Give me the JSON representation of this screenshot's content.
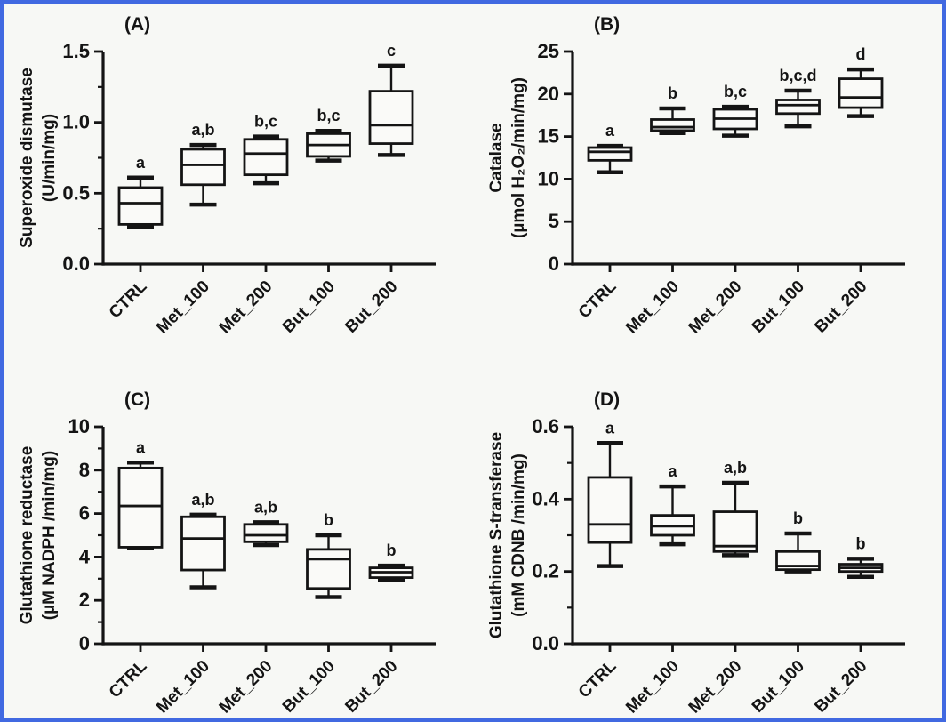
{
  "figure": {
    "background_color": "#f7f8f5",
    "border_color": "#4169e1",
    "ink_color": "#141414",
    "box_fill_color": "#fafaf8"
  },
  "chart_data": [
    {
      "type": "box",
      "panel_letter": "(A)",
      "ylabel_line1": "Superoxide dismutase",
      "ylabel_line2": "(U/min/mg)",
      "ylim": [
        0,
        1.5
      ],
      "yticks": [
        {
          "v": 0,
          "label": "0.0"
        },
        {
          "v": 0.5,
          "label": "0.5"
        },
        {
          "v": 1.0,
          "label": "1.0"
        },
        {
          "v": 1.5,
          "label": "1.5"
        }
      ],
      "minor_tick_step": 0.25,
      "grid": false,
      "categories": [
        "CTRL",
        "Met_100",
        "Met_200",
        "But_100",
        "But_200"
      ],
      "boxes": [
        {
          "category": "CTRL",
          "whisker_low": 0.26,
          "q1": 0.28,
          "median": 0.43,
          "q3": 0.54,
          "whisker_high": 0.61,
          "annotation": "a"
        },
        {
          "category": "Met_100",
          "whisker_low": 0.42,
          "q1": 0.56,
          "median": 0.7,
          "q3": 0.81,
          "whisker_high": 0.84,
          "annotation": "a,b"
        },
        {
          "category": "Met_200",
          "whisker_low": 0.57,
          "q1": 0.63,
          "median": 0.78,
          "q3": 0.88,
          "whisker_high": 0.9,
          "annotation": "b,c"
        },
        {
          "category": "But_100",
          "whisker_low": 0.73,
          "q1": 0.76,
          "median": 0.84,
          "q3": 0.92,
          "whisker_high": 0.94,
          "annotation": "b,c"
        },
        {
          "category": "But_200",
          "whisker_low": 0.77,
          "q1": 0.85,
          "median": 0.98,
          "q3": 1.22,
          "whisker_high": 1.4,
          "annotation": "c"
        }
      ]
    },
    {
      "type": "box",
      "panel_letter": "(B)",
      "ylabel_line1": "Catalase",
      "ylabel_line2": "(µmol H₂O₂/min/mg)",
      "ylim": [
        0,
        25
      ],
      "yticks": [
        {
          "v": 0,
          "label": "0"
        },
        {
          "v": 5,
          "label": "5"
        },
        {
          "v": 10,
          "label": "10"
        },
        {
          "v": 15,
          "label": "15"
        },
        {
          "v": 20,
          "label": "20"
        },
        {
          "v": 25,
          "label": "25"
        }
      ],
      "minor_tick_step": null,
      "grid": false,
      "categories": [
        "CTRL",
        "Met_100",
        "Met_200",
        "But_100",
        "But_200"
      ],
      "boxes": [
        {
          "category": "CTRL",
          "whisker_low": 10.8,
          "q1": 12.2,
          "median": 13.2,
          "q3": 13.7,
          "whisker_high": 13.9,
          "annotation": "a"
        },
        {
          "category": "Met_100",
          "whisker_low": 15.4,
          "q1": 15.7,
          "median": 16.1,
          "q3": 17.0,
          "whisker_high": 18.3,
          "annotation": "b"
        },
        {
          "category": "Met_200",
          "whisker_low": 15.1,
          "q1": 15.9,
          "median": 17.1,
          "q3": 18.2,
          "whisker_high": 18.5,
          "annotation": "b,c"
        },
        {
          "category": "But_100",
          "whisker_low": 16.2,
          "q1": 17.7,
          "median": 18.7,
          "q3": 19.3,
          "whisker_high": 20.4,
          "annotation": "b,c,d"
        },
        {
          "category": "But_200",
          "whisker_low": 17.4,
          "q1": 18.4,
          "median": 19.6,
          "q3": 21.8,
          "whisker_high": 22.9,
          "annotation": "d"
        }
      ]
    },
    {
      "type": "box",
      "panel_letter": "(C)",
      "ylabel_line1": "Glutathione reductase",
      "ylabel_line2": "(µM NADPH /min/mg)",
      "ylim": [
        0,
        10
      ],
      "yticks": [
        {
          "v": 0,
          "label": "0"
        },
        {
          "v": 2,
          "label": "2"
        },
        {
          "v": 4,
          "label": "4"
        },
        {
          "v": 6,
          "label": "6"
        },
        {
          "v": 8,
          "label": "8"
        },
        {
          "v": 10,
          "label": "10"
        }
      ],
      "minor_tick_step": 1,
      "grid": false,
      "categories": [
        "CTRL",
        "Met_100",
        "Met_200",
        "But_100",
        "But_200"
      ],
      "boxes": [
        {
          "category": "CTRL",
          "whisker_low": 4.4,
          "q1": 4.45,
          "median": 6.35,
          "q3": 8.1,
          "whisker_high": 8.35,
          "annotation": "a"
        },
        {
          "category": "Met_100",
          "whisker_low": 2.6,
          "q1": 3.4,
          "median": 4.85,
          "q3": 5.85,
          "whisker_high": 5.95,
          "annotation": "a,b"
        },
        {
          "category": "Met_200",
          "whisker_low": 4.55,
          "q1": 4.7,
          "median": 5.0,
          "q3": 5.5,
          "whisker_high": 5.6,
          "annotation": "a,b"
        },
        {
          "category": "But_100",
          "whisker_low": 2.15,
          "q1": 2.55,
          "median": 3.9,
          "q3": 4.35,
          "whisker_high": 5.0,
          "annotation": "b"
        },
        {
          "category": "But_200",
          "whisker_low": 2.95,
          "q1": 3.05,
          "median": 3.3,
          "q3": 3.5,
          "whisker_high": 3.6,
          "annotation": "b"
        }
      ]
    },
    {
      "type": "box",
      "panel_letter": "(D)",
      "ylabel_line1": "Glutathione S-transferase",
      "ylabel_line2": "(mM CDNB /min/mg)",
      "ylim": [
        0,
        0.6
      ],
      "yticks": [
        {
          "v": 0,
          "label": "0.0"
        },
        {
          "v": 0.2,
          "label": "0.2"
        },
        {
          "v": 0.4,
          "label": "0.4"
        },
        {
          "v": 0.6,
          "label": "0.6"
        }
      ],
      "minor_tick_step": 0.1,
      "grid": false,
      "categories": [
        "CTRL",
        "Met_100",
        "Met_200",
        "But_100",
        "But_200"
      ],
      "boxes": [
        {
          "category": "CTRL",
          "whisker_low": 0.215,
          "q1": 0.28,
          "median": 0.33,
          "q3": 0.46,
          "whisker_high": 0.555,
          "annotation": "a"
        },
        {
          "category": "Met_100",
          "whisker_low": 0.275,
          "q1": 0.3,
          "median": 0.325,
          "q3": 0.355,
          "whisker_high": 0.435,
          "annotation": "a"
        },
        {
          "category": "Met_200",
          "whisker_low": 0.245,
          "q1": 0.255,
          "median": 0.27,
          "q3": 0.365,
          "whisker_high": 0.445,
          "annotation": "a,b"
        },
        {
          "category": "But_100",
          "whisker_low": 0.2,
          "q1": 0.205,
          "median": 0.215,
          "q3": 0.255,
          "whisker_high": 0.305,
          "annotation": "b"
        },
        {
          "category": "But_200",
          "whisker_low": 0.185,
          "q1": 0.2,
          "median": 0.21,
          "q3": 0.22,
          "whisker_high": 0.235,
          "annotation": "b"
        }
      ]
    }
  ]
}
